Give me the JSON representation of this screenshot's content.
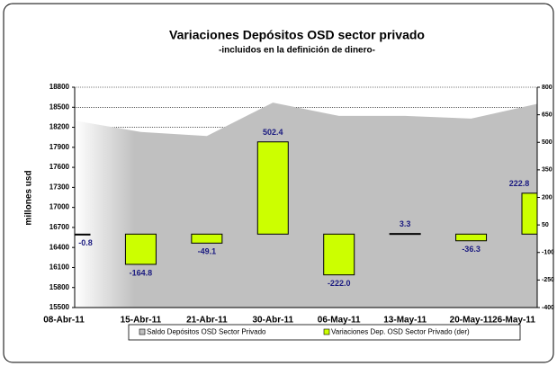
{
  "chart_data": {
    "type": "area_bar",
    "title": "Variaciones Depósitos OSD sector privado",
    "subtitle": "-incluidos en la definición de dinero-",
    "y_label": "millones usd",
    "categories": [
      "08-Abr-11",
      "15-Abr-11",
      "21-Abr-11",
      "30-Abr-11",
      "06-May-11",
      "13-May-11",
      "20-May-11",
      "26-May-11"
    ],
    "series": [
      {
        "name": "Saldo Depósitos OSD Sector Privado",
        "color": "#c0c0c0",
        "values": [
          18300,
          18130,
          18070,
          18570,
          18370,
          18370,
          18330,
          18550
        ]
      },
      {
        "name": "Variaciones Dep. OSD Sector Privado (der)",
        "color": "#ccff00",
        "axis": "y2",
        "values": [
          -0.8,
          -164.8,
          -49.1,
          502.4,
          -222.0,
          3.3,
          -36.3,
          222.8
        ],
        "value_labels": [
          "-0.8",
          "-164.8",
          "-49.1",
          "502.4",
          "-222.0",
          "3.3",
          "-36.3",
          "222.8"
        ]
      }
    ],
    "ylim": [
      15500,
      18800
    ],
    "yticks": [
      15500,
      15800,
      16100,
      16400,
      16700,
      17000,
      17300,
      17600,
      17900,
      18200,
      18500,
      18800
    ],
    "y2lim": [
      -400,
      800
    ],
    "y2ticks": [
      -400,
      -250,
      -100,
      50,
      200,
      350,
      500,
      650,
      800
    ],
    "grid": true,
    "legend": "bottom"
  }
}
